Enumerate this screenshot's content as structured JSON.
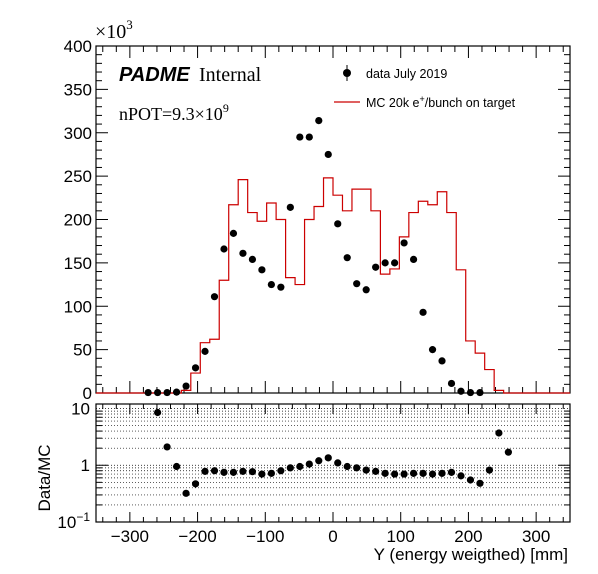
{
  "chart_data": [
    {
      "type": "line",
      "panel": "main",
      "ylabel_exponent": "×10",
      "ylabel_exponent_power": "3",
      "ylim": [
        0,
        400
      ],
      "xlim": [
        -350,
        350
      ],
      "y_ticks": [
        0,
        50,
        100,
        150,
        200,
        250,
        300,
        350,
        400
      ],
      "y_tick_labels": [
        "0",
        "50",
        "100",
        "150",
        "200",
        "250",
        "300",
        "350",
        "400"
      ],
      "annotations": {
        "experiment": "PADME",
        "internal": "Internal",
        "npot_prefix": "nPOT=9.3×10",
        "npot_power": "9"
      },
      "legend": {
        "placement": "top-right",
        "data_label": "data July 2019",
        "mc_label_prefix": "MC 20k e",
        "mc_label_sup": "+",
        "mc_label_suffix": "/bunch on target"
      },
      "colors": {
        "data": "#000000",
        "mc": "#cc0000"
      },
      "bin_width": 14,
      "series": [
        {
          "name": "data July 2019",
          "style": "markers",
          "x": [
            -350,
            -336,
            -322,
            -308,
            -294,
            -280,
            -266,
            -252,
            -238,
            -224,
            -210,
            -196,
            -182,
            -168,
            -154,
            -140,
            -126,
            -112,
            -98,
            -84,
            -70,
            -56,
            -42,
            -28,
            -14,
            0,
            14,
            28,
            42,
            56,
            70,
            84,
            98,
            112,
            126,
            140,
            154,
            168,
            182,
            196,
            210,
            224,
            238,
            252,
            266,
            280,
            294,
            308,
            322,
            336
          ],
          "values": [
            0,
            0,
            0,
            0,
            0,
            0.5,
            0.5,
            0.5,
            1,
            8,
            29,
            48,
            111,
            166,
            184,
            161,
            154,
            142,
            125,
            122,
            214,
            295,
            295,
            314,
            275,
            195,
            156,
            126,
            119,
            145,
            150,
            150,
            173,
            154,
            93,
            50,
            37,
            11,
            2,
            0.5,
            0.5,
            0,
            0,
            0,
            0,
            0,
            0,
            0,
            0,
            0
          ]
        },
        {
          "name": "MC 20k e+/bunch on target",
          "style": "step",
          "x": [
            -350,
            -336,
            -322,
            -308,
            -294,
            -280,
            -266,
            -252,
            -238,
            -224,
            -210,
            -196,
            -182,
            -168,
            -154,
            -140,
            -126,
            -112,
            -98,
            -84,
            -70,
            -56,
            -42,
            -28,
            -14,
            0,
            14,
            28,
            42,
            56,
            70,
            84,
            98,
            112,
            126,
            140,
            154,
            168,
            182,
            196,
            210,
            224,
            238,
            252,
            266,
            280,
            294,
            308,
            322,
            336
          ],
          "values": [
            0,
            0,
            0,
            0,
            0,
            0,
            0,
            0,
            0,
            3,
            23,
            58,
            62,
            130,
            217,
            246,
            208,
            198,
            219,
            200,
            133,
            125,
            200,
            215,
            248,
            228,
            210,
            235,
            235,
            210,
            137,
            143,
            180,
            208,
            221,
            217,
            232,
            208,
            142,
            60,
            46,
            27,
            3,
            0,
            0,
            0,
            0,
            0,
            0,
            0
          ]
        }
      ]
    },
    {
      "type": "scatter",
      "panel": "ratio",
      "xlabel": "Y (energy weigthed) [mm]",
      "ylabel": "Data/MC",
      "log_y": true,
      "ylim": [
        0.1,
        12
      ],
      "xlim": [
        -350,
        350
      ],
      "x_ticks": [
        -300,
        -200,
        -100,
        0,
        100,
        200,
        300
      ],
      "x_tick_labels": [
        "−300",
        "−200",
        "−100",
        "0",
        "100",
        "200",
        "300"
      ],
      "y_tick_base": "10",
      "y_tick_one": "1",
      "y_tick_power": "−1",
      "grid": true,
      "series": [
        {
          "name": "Data/MC",
          "x": [
            -266,
            -252,
            -238,
            -224,
            -210,
            -196,
            -182,
            -168,
            -154,
            -140,
            -126,
            -112,
            -98,
            -84,
            -70,
            -56,
            -42,
            -28,
            -14,
            0,
            14,
            28,
            42,
            56,
            70,
            84,
            98,
            112,
            126,
            140,
            154,
            168,
            182,
            196,
            210,
            224,
            238,
            252,
            266
          ],
          "values": [
            8.5,
            2.1,
            0.95,
            0.32,
            0.47,
            0.78,
            0.8,
            0.75,
            0.75,
            0.78,
            0.77,
            0.7,
            0.72,
            0.8,
            0.9,
            0.95,
            1.05,
            1.2,
            1.35,
            1.1,
            0.95,
            0.9,
            0.82,
            0.78,
            0.72,
            0.7,
            0.7,
            0.72,
            0.72,
            0.7,
            0.72,
            0.75,
            0.65,
            0.55,
            0.48,
            0.82,
            3.7,
            1.7,
            0.0
          ]
        }
      ]
    }
  ]
}
